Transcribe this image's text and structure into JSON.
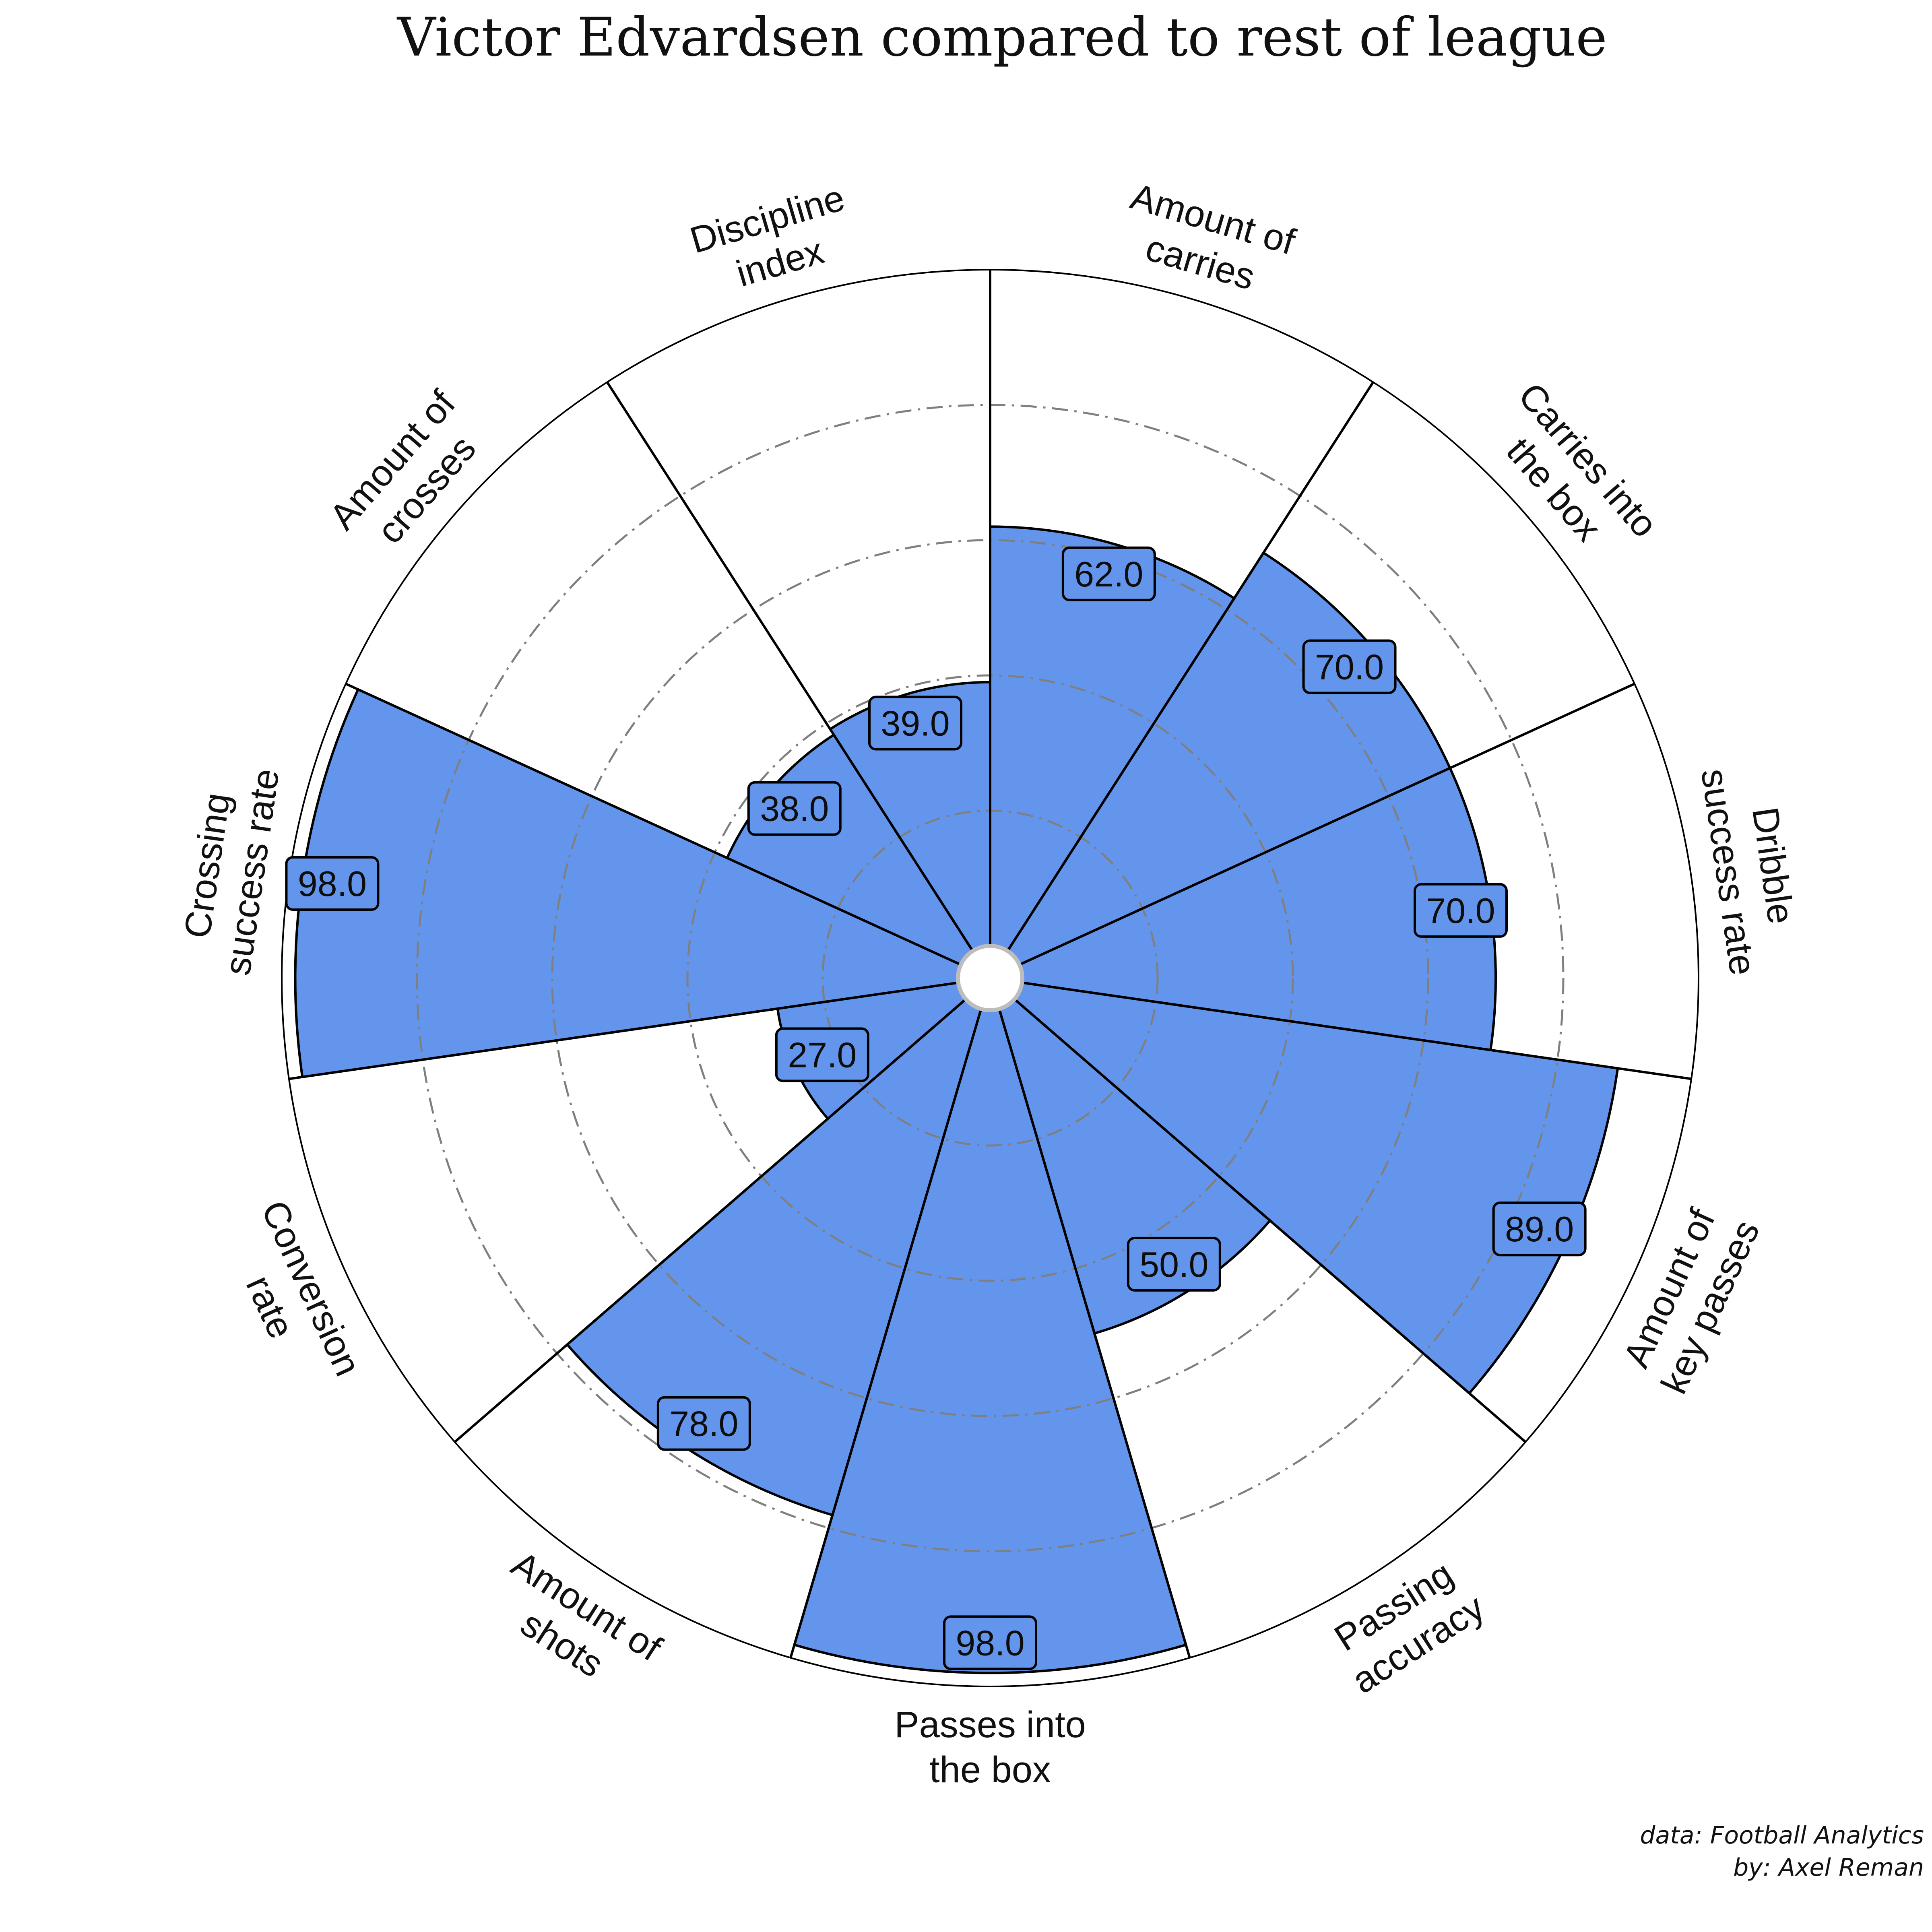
{
  "colors": {
    "slice_fill": "#6495ED",
    "slice_edge": "#000000",
    "grid": "#7f7f7f",
    "value_box_fill": "#6495ED",
    "background": "#ffffff"
  },
  "chart_data": {
    "type": "pie",
    "subtype": "radar-pizza",
    "title": "Victor Edvardsen compared to rest of league",
    "range": [
      0,
      100
    ],
    "start_angle_direction": "top, clockwise",
    "grid_levels": [
      20,
      40,
      60,
      80
    ],
    "legend": "none",
    "parameters": [
      {
        "label": [
          "Amount of",
          "carries"
        ],
        "value": 62.0,
        "display": "62.0"
      },
      {
        "label": [
          "Carries into",
          "the box"
        ],
        "value": 70.0,
        "display": "70.0"
      },
      {
        "label": [
          "Dribble",
          "success rate"
        ],
        "value": 70.0,
        "display": "70.0"
      },
      {
        "label": [
          "Amount of",
          "key passes"
        ],
        "value": 89.0,
        "display": "89.0"
      },
      {
        "label": [
          "Passing",
          "accuracy"
        ],
        "value": 50.0,
        "display": "50.0"
      },
      {
        "label": [
          "Passes into",
          "the box"
        ],
        "value": 98.0,
        "display": "98.0"
      },
      {
        "label": [
          "Amount of",
          "shots"
        ],
        "value": 78.0,
        "display": "78.0"
      },
      {
        "label": [
          "Conversion",
          "rate"
        ],
        "value": 27.0,
        "display": "27.0"
      },
      {
        "label": [
          "Crossing",
          "success rate"
        ],
        "value": 98.0,
        "display": "98.0"
      },
      {
        "label": [
          "Amount of",
          "crosses"
        ],
        "value": 38.0,
        "display": "38.0"
      },
      {
        "label": [
          "Discipline",
          "index"
        ],
        "value": 39.0,
        "display": "39.0"
      }
    ]
  },
  "credits": {
    "line1": "data: Football Analytics",
    "line2": "by: Axel Reman"
  }
}
